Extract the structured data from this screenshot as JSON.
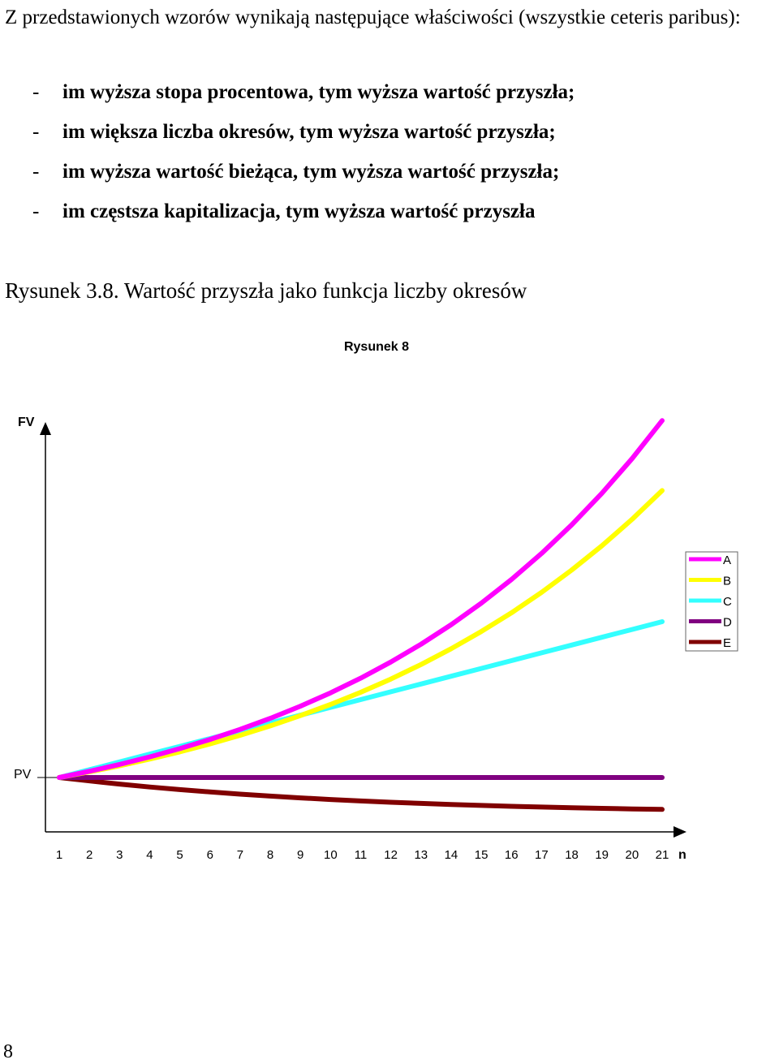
{
  "document": {
    "intro": "Z przedstawionych wzorów wynikają następujące właściwości (wszystkie ceteris paribus):",
    "bullets": [
      "im wyższa stopa procentowa, tym wyższa wartość przyszła;",
      "im większa liczba okresów, tym wyższa wartość przyszła;",
      "im wyższa wartość bieżąca, tym wyższa wartość przyszła;",
      "im częstsza kapitalizacja, tym wyższa wartość przyszła"
    ],
    "bullet_marker": "-",
    "figure_caption": "Rysunek 3.8. Wartość przyszła jako funkcja liczby okresów",
    "page_number": "8"
  },
  "chart_data": {
    "type": "line",
    "title": "Rysunek 8",
    "ylabel": "FV",
    "xlabel": "n",
    "y_reference_label": "PV",
    "x": [
      1,
      2,
      3,
      4,
      5,
      6,
      7,
      8,
      9,
      10,
      11,
      12,
      13,
      14,
      15,
      16,
      17,
      18,
      19,
      20,
      21
    ],
    "x_tick_labels": [
      "1",
      "2",
      "3",
      "4",
      "5",
      "6",
      "7",
      "8",
      "9",
      "10",
      "11",
      "12",
      "13",
      "14",
      "15",
      "16",
      "17",
      "18",
      "19",
      "20",
      "21"
    ],
    "legend_position": "right",
    "grid": false,
    "series": [
      {
        "name": "A",
        "color": "#ff00ff",
        "values": [
          1.0,
          1.1,
          1.21,
          1.331,
          1.464,
          1.611,
          1.772,
          1.949,
          2.144,
          2.358,
          2.594,
          2.853,
          3.138,
          3.452,
          3.797,
          4.177,
          4.595,
          5.054,
          5.56,
          6.116,
          6.727
        ]
      },
      {
        "name": "B",
        "color": "#ffff00",
        "values": [
          1.0,
          1.09,
          1.188,
          1.295,
          1.412,
          1.539,
          1.677,
          1.828,
          1.993,
          2.172,
          2.367,
          2.58,
          2.813,
          3.066,
          3.342,
          3.642,
          3.97,
          4.328,
          4.717,
          5.142,
          5.604
        ]
      },
      {
        "name": "C",
        "color": "#33ffff",
        "values": [
          1.0,
          1.125,
          1.25,
          1.375,
          1.5,
          1.625,
          1.75,
          1.875,
          2.0,
          2.125,
          2.25,
          2.375,
          2.5,
          2.625,
          2.75,
          2.875,
          3.0,
          3.125,
          3.25,
          3.375,
          3.5
        ]
      },
      {
        "name": "D",
        "color": "#800080",
        "values": [
          1,
          1,
          1,
          1,
          1,
          1,
          1,
          1,
          1,
          1,
          1,
          1,
          1,
          1,
          1,
          1,
          1,
          1,
          1,
          1,
          1
        ]
      },
      {
        "name": "E",
        "color": "#800000",
        "values": [
          1.0,
          0.945,
          0.894,
          0.848,
          0.806,
          0.768,
          0.733,
          0.702,
          0.673,
          0.647,
          0.624,
          0.603,
          0.584,
          0.567,
          0.552,
          0.538,
          0.526,
          0.515,
          0.505,
          0.496,
          0.488
        ]
      }
    ]
  }
}
